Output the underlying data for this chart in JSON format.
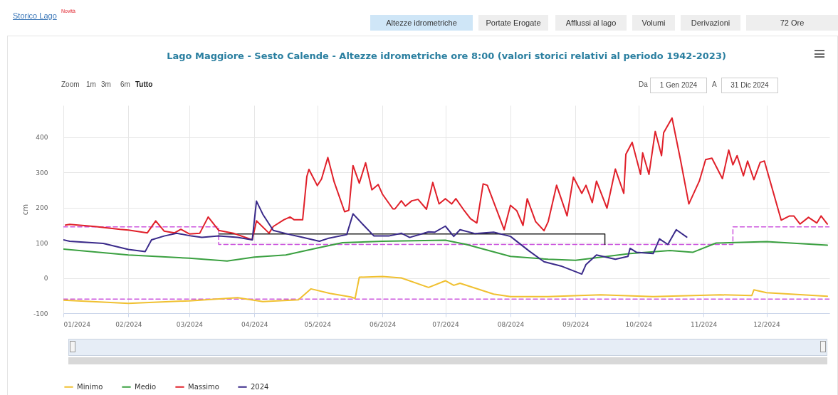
{
  "chart_data": {
    "type": "line",
    "title": "Lago Maggiore - Sesto Calende - Altezze idrometriche ore 8:00 (valori storici relativi al periodo 1942-2023)",
    "ylabel": "cm",
    "xlim": [
      "2024-01-01",
      "2024-12-31"
    ],
    "xticks": [
      {
        "value": "2024-01-01",
        "label": "01/2024"
      },
      {
        "value": "2024-02-01",
        "label": "02/2024"
      },
      {
        "value": "2024-03-01",
        "label": "03/2024"
      },
      {
        "value": "2024-04-01",
        "label": "04/2024"
      },
      {
        "value": "2024-05-01",
        "label": "05/2024"
      },
      {
        "value": "2024-06-01",
        "label": "06/2024"
      },
      {
        "value": "2024-07-01",
        "label": "07/2024"
      },
      {
        "value": "2024-08-01",
        "label": "08/2024"
      },
      {
        "value": "2024-09-01",
        "label": "09/2024"
      },
      {
        "value": "2024-10-01",
        "label": "10/2024"
      },
      {
        "value": "2024-11-01",
        "label": "11/2024"
      },
      {
        "value": "2024-12-01",
        "label": "12/2024"
      }
    ],
    "ylim": [
      -100,
      490
    ],
    "yticks": [
      -100,
      0,
      100,
      200,
      300,
      400
    ],
    "grid": true,
    "legend": "bottom",
    "marker": "none",
    "annotations": [
      "Storico Lago",
      "Novità",
      "Altezze idrometriche",
      "Portate Erogate",
      "Afflussi al lago",
      "Volumi",
      "Derivazioni",
      "72 Ore",
      "Zoom",
      "1m",
      "3m",
      "6m",
      "Tutto",
      "Da",
      "1 Gen 2024",
      "A",
      "31 Dic 2024"
    ],
    "series": [
      {
        "color": "#cc55dd",
        "line_style": "dashed",
        "x": [
          "2024-01-01",
          "2024-12-31"
        ],
        "values": [
          -60,
          -60
        ]
      },
      {
        "color": "#cc55dd",
        "line_style": "dashed",
        "x": [
          "2024-01-01",
          "2024-03-15",
          "2024-03-15",
          "2024-11-15",
          "2024-11-15",
          "2024-12-31"
        ],
        "values": [
          145,
          145,
          95,
          95,
          145,
          145
        ]
      },
      {
        "color": "#222222",
        "line_style": "solid",
        "x": [
          "2024-03-15",
          "2024-09-15",
          "2024-09-15"
        ],
        "values": [
          125,
          125,
          95
        ]
      },
      {
        "name": "Minimo",
        "color": "#f0c030",
        "line_style": "solid",
        "x": [
          "2024-01-01",
          "2024-02-01",
          "2024-03-01",
          "2024-03-24",
          "2024-04-05",
          "2024-04-22",
          "2024-04-28",
          "2024-05-07",
          "2024-05-17",
          "2024-05-19",
          "2024-05-21",
          "2024-06-01",
          "2024-06-10",
          "2024-06-23",
          "2024-07-01",
          "2024-07-05",
          "2024-07-08",
          "2024-07-24",
          "2024-08-01",
          "2024-08-19",
          "2024-09-13",
          "2024-10-08",
          "2024-11-09",
          "2024-11-24",
          "2024-11-25",
          "2024-12-01",
          "2024-12-30"
        ],
        "values": [
          -63,
          -72,
          -65,
          -56,
          -67,
          -62,
          -31,
          -44,
          -54,
          -58,
          2,
          4,
          0,
          -27,
          -8,
          -21,
          -15,
          -46,
          -53,
          -53,
          -48,
          -53,
          -48,
          -50,
          -34,
          -42,
          -52
        ]
      },
      {
        "name": "Medio",
        "color": "#3aa040",
        "line_style": "solid",
        "x": [
          "2024-01-01",
          "2024-02-01",
          "2024-03-01",
          "2024-03-19",
          "2024-04-01",
          "2024-04-16",
          "2024-05-01",
          "2024-05-13",
          "2024-06-01",
          "2024-07-01",
          "2024-07-11",
          "2024-08-01",
          "2024-08-19",
          "2024-09-01",
          "2024-09-27",
          "2024-10-16",
          "2024-10-27",
          "2024-11-07",
          "2024-12-01",
          "2024-12-30"
        ],
        "values": [
          82,
          65,
          56,
          48,
          59,
          65,
          85,
          100,
          104,
          107,
          95,
          61,
          53,
          50,
          69,
          78,
          73,
          99,
          103,
          93
        ]
      },
      {
        "name": "Massimo",
        "color": "#e0202a",
        "line_style": "solid",
        "x": [
          "2024-01-02",
          "2024-01-04",
          "2024-01-16",
          "2024-01-28",
          "2024-02-01",
          "2024-02-10",
          "2024-02-14",
          "2024-02-18",
          "2024-02-23",
          "2024-02-26",
          "2024-03-01",
          "2024-03-06",
          "2024-03-10",
          "2024-03-15",
          "2024-03-22",
          "2024-03-31",
          "2024-04-02",
          "2024-04-08",
          "2024-04-10",
          "2024-04-15",
          "2024-04-18",
          "2024-04-20",
          "2024-04-24",
          "2024-04-26",
          "2024-04-27",
          "2024-05-01",
          "2024-05-03",
          "2024-05-06",
          "2024-05-09",
          "2024-05-14",
          "2024-05-16",
          "2024-05-18",
          "2024-05-21",
          "2024-05-24",
          "2024-05-27",
          "2024-05-30",
          "2024-06-01",
          "2024-06-06",
          "2024-06-07",
          "2024-06-10",
          "2024-06-12",
          "2024-06-15",
          "2024-06-18",
          "2024-06-22",
          "2024-06-25",
          "2024-06-28",
          "2024-07-01",
          "2024-07-04",
          "2024-07-06",
          "2024-07-10",
          "2024-07-13",
          "2024-07-16",
          "2024-07-19",
          "2024-07-21",
          "2024-07-29",
          "2024-08-01",
          "2024-08-04",
          "2024-08-07",
          "2024-08-09",
          "2024-08-13",
          "2024-08-17",
          "2024-08-19",
          "2024-08-23",
          "2024-08-28",
          "2024-08-31",
          "2024-09-04",
          "2024-09-06",
          "2024-09-09",
          "2024-09-11",
          "2024-09-16",
          "2024-09-20",
          "2024-09-24",
          "2024-09-25",
          "2024-09-28",
          "2024-10-02",
          "2024-10-03",
          "2024-10-06",
          "2024-10-09",
          "2024-10-12",
          "2024-10-13",
          "2024-10-17",
          "2024-10-21",
          "2024-10-25",
          "2024-10-30",
          "2024-11-02",
          "2024-11-05",
          "2024-11-10",
          "2024-11-13",
          "2024-11-15",
          "2024-11-17",
          "2024-11-20",
          "2024-11-22",
          "2024-11-25",
          "2024-11-28",
          "2024-11-30",
          "2024-12-08",
          "2024-12-12",
          "2024-12-14",
          "2024-12-17",
          "2024-12-21",
          "2024-12-25",
          "2024-12-27",
          "2024-12-30"
        ],
        "values": [
          150,
          152,
          146,
          138,
          136,
          128,
          162,
          133,
          128,
          138,
          125,
          127,
          173,
          135,
          127,
          108,
          162,
          127,
          146,
          165,
          173,
          165,
          165,
          288,
          308,
          262,
          281,
          342,
          273,
          188,
          192,
          319,
          269,
          327,
          250,
          265,
          238,
          196,
          196,
          219,
          204,
          219,
          223,
          195,
          271,
          210,
          225,
          210,
          225,
          191,
          168,
          156,
          267,
          263,
          137,
          206,
          191,
          149,
          225,
          160,
          134,
          160,
          263,
          176,
          286,
          240,
          263,
          214,
          275,
          198,
          309,
          240,
          351,
          385,
          294,
          355,
          294,
          416,
          347,
          412,
          454,
          336,
          210,
          275,
          336,
          340,
          282,
          363,
          321,
          347,
          290,
          332,
          279,
          328,
          332,
          164,
          176,
          176,
          153,
          172,
          156,
          176,
          153
        ]
      },
      {
        "name": "2024",
        "color": "#3a2a8a",
        "line_style": "solid",
        "x": [
          "2024-01-01",
          "2024-01-04",
          "2024-01-20",
          "2024-02-01",
          "2024-02-09",
          "2024-02-12",
          "2024-02-18",
          "2024-02-24",
          "2024-03-02",
          "2024-03-07",
          "2024-03-15",
          "2024-03-24",
          "2024-03-31",
          "2024-04-02",
          "2024-04-05",
          "2024-04-10",
          "2024-04-18",
          "2024-04-24",
          "2024-05-02",
          "2024-05-06",
          "2024-05-15",
          "2024-05-18",
          "2024-05-23",
          "2024-05-28",
          "2024-06-04",
          "2024-06-10",
          "2024-06-14",
          "2024-06-23",
          "2024-06-26",
          "2024-07-01",
          "2024-07-05",
          "2024-07-08",
          "2024-07-15",
          "2024-07-24",
          "2024-08-01",
          "2024-08-10",
          "2024-08-17",
          "2024-08-25",
          "2024-09-04",
          "2024-09-06",
          "2024-09-11",
          "2024-09-20",
          "2024-09-26",
          "2024-09-27",
          "2024-09-30",
          "2024-10-08",
          "2024-10-11",
          "2024-10-15",
          "2024-10-19",
          "2024-10-24"
        ],
        "values": [
          108,
          104,
          98,
          81,
          75,
          108,
          119,
          127,
          119,
          115,
          119,
          115,
          108,
          218,
          181,
          135,
          123,
          115,
          104,
          112,
          123,
          182,
          150,
          119,
          119,
          127,
          115,
          131,
          130,
          147,
          118,
          137,
          126,
          130,
          118,
          76,
          46,
          34,
          11,
          38,
          65,
          53,
          61,
          84,
          73,
          69,
          111,
          95,
          137,
          116
        ]
      }
    ]
  }
}
